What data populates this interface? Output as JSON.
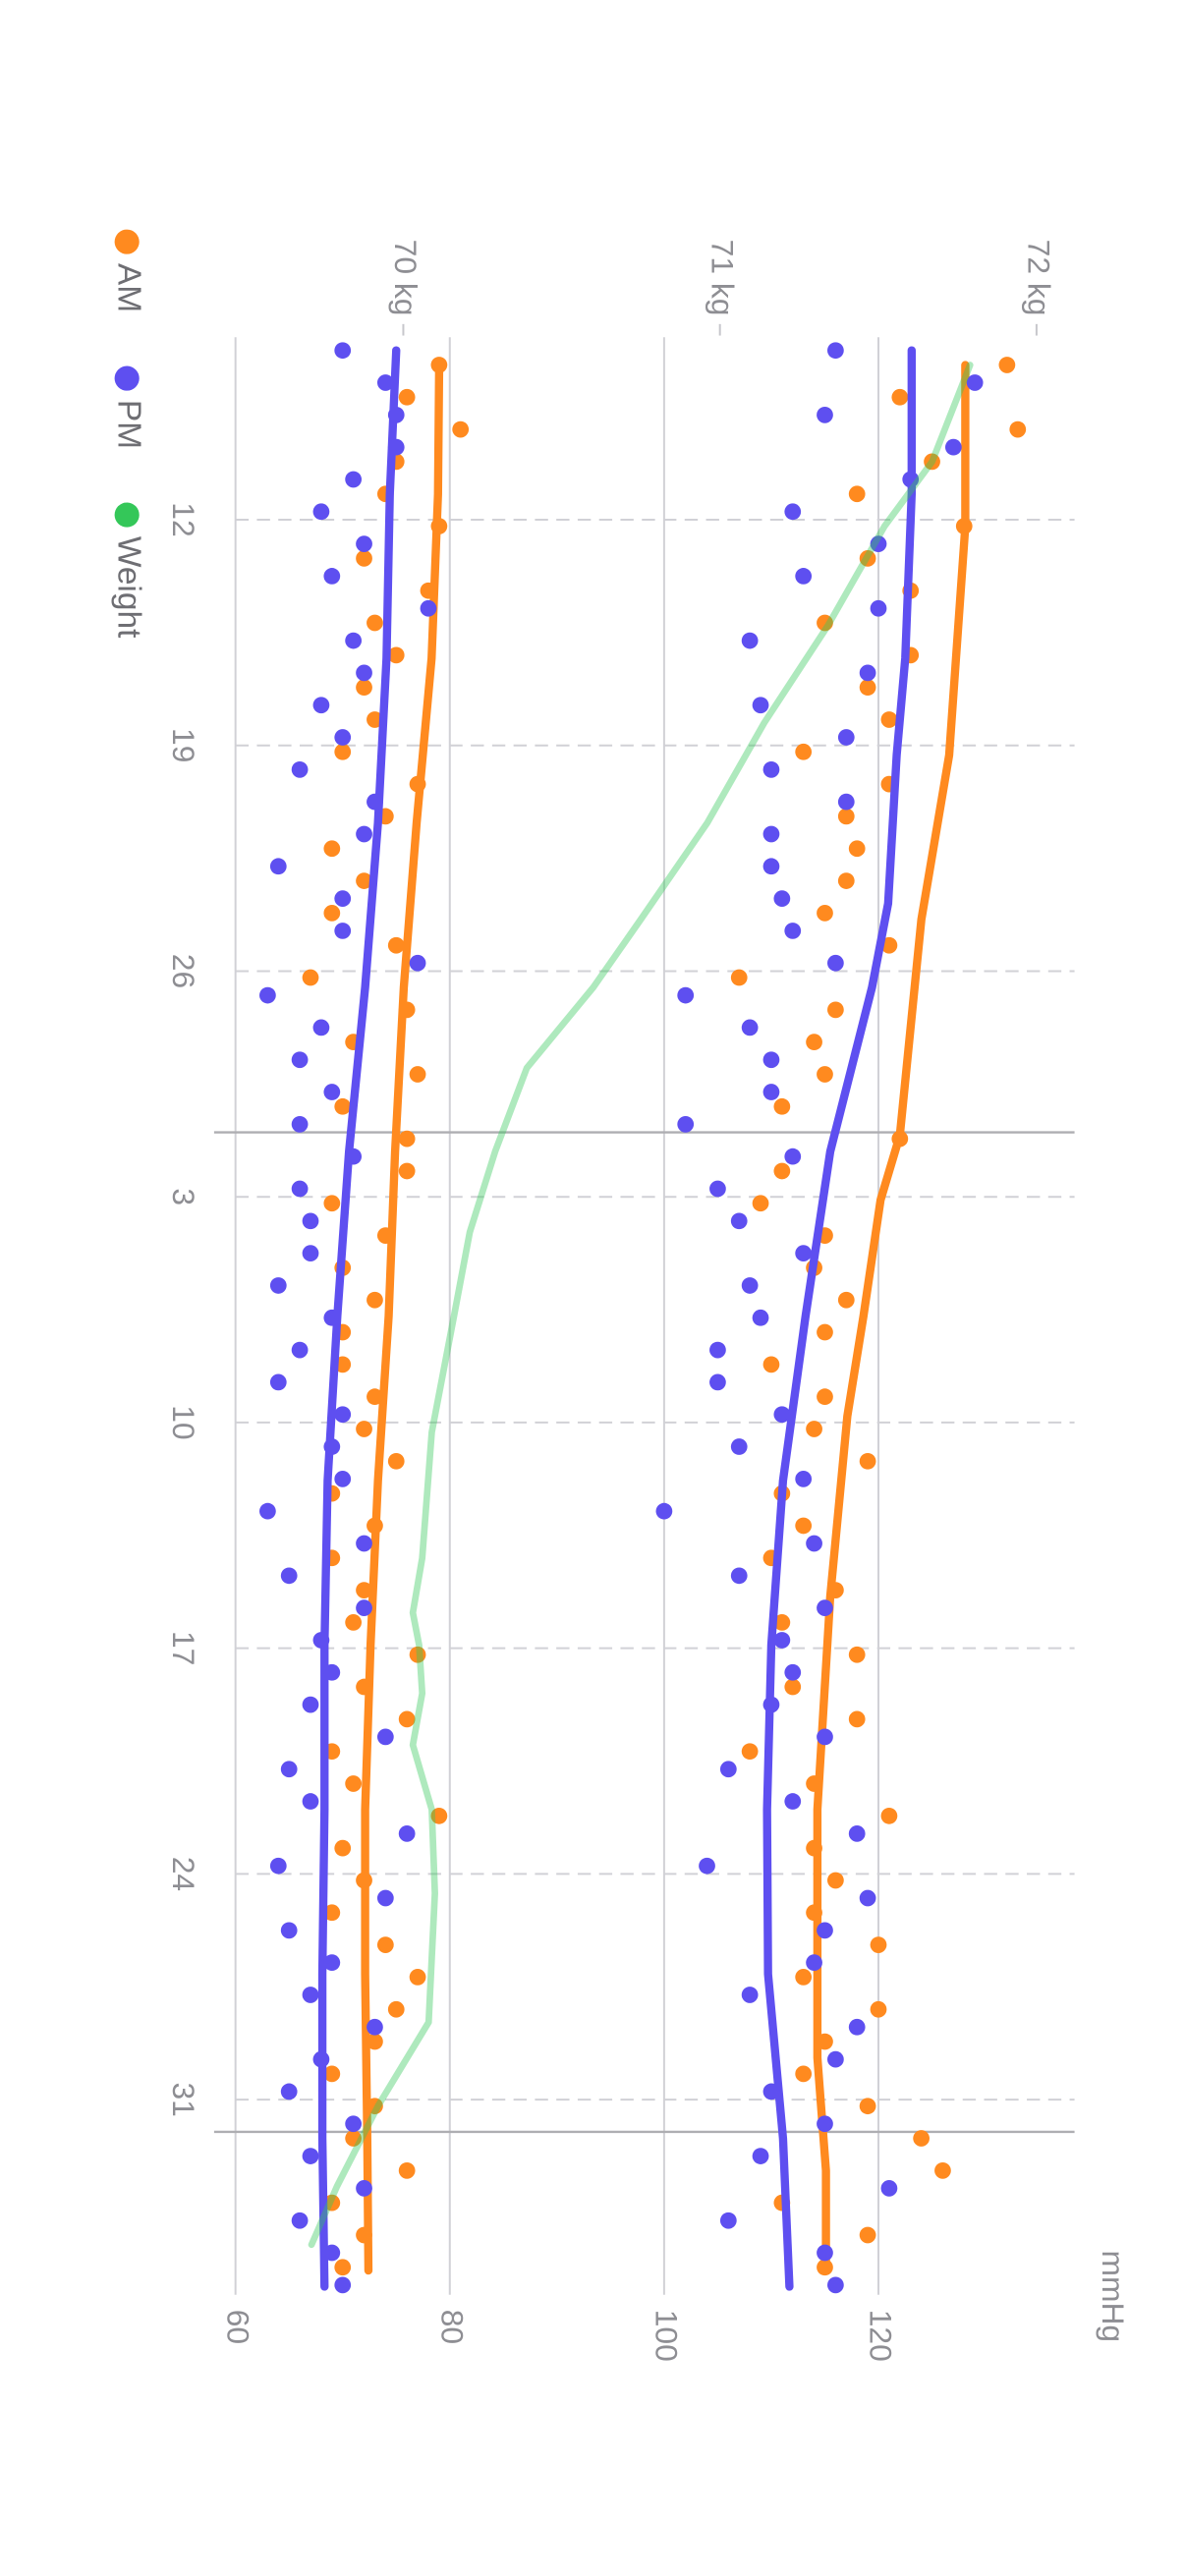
{
  "chart_data": {
    "type": "scatter",
    "y_label": "mmHg",
    "xlim": [
      -0.66,
      60.05
    ],
    "xticks": [
      {
        "value": 5,
        "label": "12"
      },
      {
        "value": 12,
        "label": "19"
      },
      {
        "value": 19,
        "label": "26"
      },
      {
        "value": 26,
        "label": "3"
      },
      {
        "value": 33,
        "label": "10"
      },
      {
        "value": 40,
        "label": "17"
      },
      {
        "value": 47,
        "label": "24"
      },
      {
        "value": 54,
        "label": "31"
      }
    ],
    "month_lines": [
      24,
      55
    ],
    "ylim": [
      60,
      138.3
    ],
    "yticks": [
      60,
      80,
      100,
      120
    ],
    "y2lim": [
      69.47,
      72.12
    ],
    "y2ticks": [
      {
        "value": 70,
        "label": "70 kg"
      },
      {
        "value": 71,
        "label": "71 kg"
      },
      {
        "value": 72,
        "label": "72 kg"
      }
    ],
    "grid": true,
    "series": [
      {
        "name": "AM",
        "color": "#ff8a1f",
        "x": [
          0.2,
          1.2,
          2.2,
          3.2,
          4.2,
          5.2,
          6.2,
          7.2,
          8.2,
          9.2,
          10.2,
          11.2,
          12.2,
          13.2,
          14.2,
          15.2,
          16.2,
          17.2,
          18.2,
          19.2,
          20.2,
          21.2,
          22.2,
          23.2,
          24.2,
          25.2,
          26.2,
          27.2,
          28.2,
          29.2,
          30.2,
          31.2,
          32.2,
          33.2,
          34.2,
          35.2,
          36.2,
          37.2,
          38.2,
          39.2,
          40.2,
          41.2,
          42.2,
          43.2,
          44.2,
          45.2,
          46.2,
          47.2,
          48.2,
          49.2,
          50.2,
          51.2,
          52.2,
          53.2,
          54.2,
          55.2,
          56.2,
          57.2,
          58.2,
          59.2
        ],
        "systolic": [
          132,
          122,
          133,
          125,
          118,
          128,
          119,
          123,
          115,
          123,
          119,
          121,
          113,
          121,
          117,
          118,
          117,
          115,
          121,
          107,
          116,
          114,
          115,
          111,
          122,
          111,
          109,
          115,
          114,
          117,
          115,
          110,
          115,
          114,
          119,
          111,
          113,
          110,
          116,
          111,
          118,
          112,
          118,
          108,
          114,
          121,
          114,
          116,
          114,
          120,
          113,
          120,
          115,
          113,
          119,
          124,
          126,
          111,
          119,
          115
        ],
        "diastolic": [
          79,
          76,
          81,
          75,
          74,
          79,
          72,
          78,
          73,
          75,
          72,
          73,
          70,
          77,
          74,
          69,
          72,
          69,
          75,
          67,
          76,
          71,
          77,
          70,
          76,
          76,
          69,
          74,
          70,
          73,
          70,
          70,
          73,
          72,
          75,
          69,
          73,
          69,
          72,
          71,
          77,
          72,
          76,
          69,
          71,
          79,
          70,
          72,
          69,
          74,
          77,
          75,
          73,
          69,
          73,
          71,
          76,
          69,
          72,
          70
        ],
        "systolic_trend": {
          "x": [
            0.2,
            5.2,
            12.3,
            17.4,
            24.1,
            26.1,
            29.7,
            32.8,
            38.4,
            45,
            52.7,
            56.2,
            59.3
          ],
          "values": [
            128.1,
            128.1,
            126.6,
            124.0,
            122.0,
            120.2,
            118.6,
            117.1,
            115.5,
            114.3,
            114.3,
            115.1,
            115.1
          ]
        },
        "diastolic_trend": {
          "x": [
            0.2,
            4.2,
            9.3,
            14.4,
            19.5,
            24.6,
            29.7,
            34.8,
            39.9,
            45,
            50.1,
            55.2,
            59.3
          ],
          "values": [
            79.0,
            78.9,
            78.3,
            76.9,
            75.7,
            74.9,
            74.3,
            73.3,
            72.6,
            72.1,
            72.1,
            72.3,
            72.4
          ]
        }
      },
      {
        "name": "PM",
        "color": "#5e4ff0",
        "x": [
          -0.25,
          0.75,
          1.75,
          2.75,
          3.75,
          4.75,
          5.75,
          6.75,
          7.75,
          8.75,
          9.75,
          10.75,
          11.75,
          12.75,
          13.75,
          14.75,
          15.75,
          16.75,
          17.75,
          18.75,
          19.75,
          20.75,
          21.75,
          22.75,
          23.75,
          24.75,
          25.75,
          26.75,
          27.75,
          28.75,
          29.75,
          30.75,
          31.75,
          32.75,
          33.75,
          34.75,
          35.75,
          36.75,
          37.75,
          38.75,
          39.75,
          40.75,
          41.75,
          42.75,
          43.75,
          44.75,
          45.75,
          46.75,
          47.75,
          48.75,
          49.75,
          50.75,
          51.75,
          52.75,
          53.75,
          54.75,
          55.75,
          56.75,
          57.75,
          58.75,
          59.75
        ],
        "systolic": [
          116,
          129,
          115,
          127,
          123,
          112,
          120,
          113,
          120,
          108,
          119,
          109,
          117,
          110,
          117,
          110,
          110,
          111,
          112,
          116,
          102,
          108,
          110,
          110,
          102,
          112,
          105,
          107,
          113,
          108,
          109,
          105,
          105,
          111,
          107,
          113,
          100,
          114,
          107,
          115,
          111,
          112,
          110,
          115,
          106,
          112,
          118,
          104,
          119,
          115,
          114,
          108,
          118,
          116,
          110,
          115,
          109,
          121,
          106,
          115,
          116
        ],
        "diastolic": [
          70,
          74,
          75,
          75,
          71,
          68,
          72,
          69,
          78,
          71,
          72,
          68,
          70,
          66,
          73,
          72,
          64,
          70,
          70,
          77,
          63,
          68,
          66,
          69,
          66,
          71,
          66,
          67,
          67,
          64,
          69,
          66,
          64,
          70,
          69,
          70,
          63,
          72,
          65,
          72,
          68,
          69,
          67,
          74,
          65,
          67,
          76,
          64,
          74,
          65,
          69,
          67,
          73,
          68,
          65,
          71,
          67,
          72,
          66,
          69,
          70
        ],
        "systolic_trend": {
          "x": [
            -0.25,
            4.2,
            9.3,
            12.3,
            16.9,
            19.5,
            24.6,
            29.7,
            34.8,
            39.9,
            45,
            50.1,
            55.2,
            59.8
          ],
          "values": [
            123.1,
            123.1,
            122.5,
            121.7,
            120.9,
            119.4,
            115.5,
            113.2,
            111.1,
            110.0,
            109.6,
            109.7,
            111.1,
            111.7
          ]
        },
        "diastolic_trend": {
          "x": [
            -0.25,
            4.2,
            9.3,
            14.4,
            19.5,
            24.6,
            29.7,
            34.8,
            39.9,
            45,
            50.1,
            55.2,
            59.8
          ],
          "values": [
            75.0,
            74.4,
            74.1,
            73.3,
            72.1,
            70.6,
            69.5,
            68.6,
            68.3,
            68.3,
            68.1,
            68.1,
            68.3
          ]
        }
      },
      {
        "name": "Weight",
        "color": "#34c759",
        "axis": "y2",
        "x": [
          0.2,
          3.2,
          5.2,
          8.3,
          11.3,
          14.4,
          17.4,
          19.5,
          22,
          24.6,
          27.1,
          29.7,
          33.3,
          37.2,
          38.9,
          39.9,
          41.4,
          43,
          45,
          47.6,
          51.6,
          54.2,
          56.7,
          58.5
        ],
        "values": [
          71.79,
          71.67,
          71.52,
          71.34,
          71.14,
          70.96,
          70.75,
          70.6,
          70.39,
          70.29,
          70.21,
          70.16,
          70.09,
          70.06,
          70.03,
          70.05,
          70.06,
          70.03,
          70.09,
          70.1,
          70.08,
          69.92,
          69.79,
          69.71
        ]
      }
    ]
  }
}
